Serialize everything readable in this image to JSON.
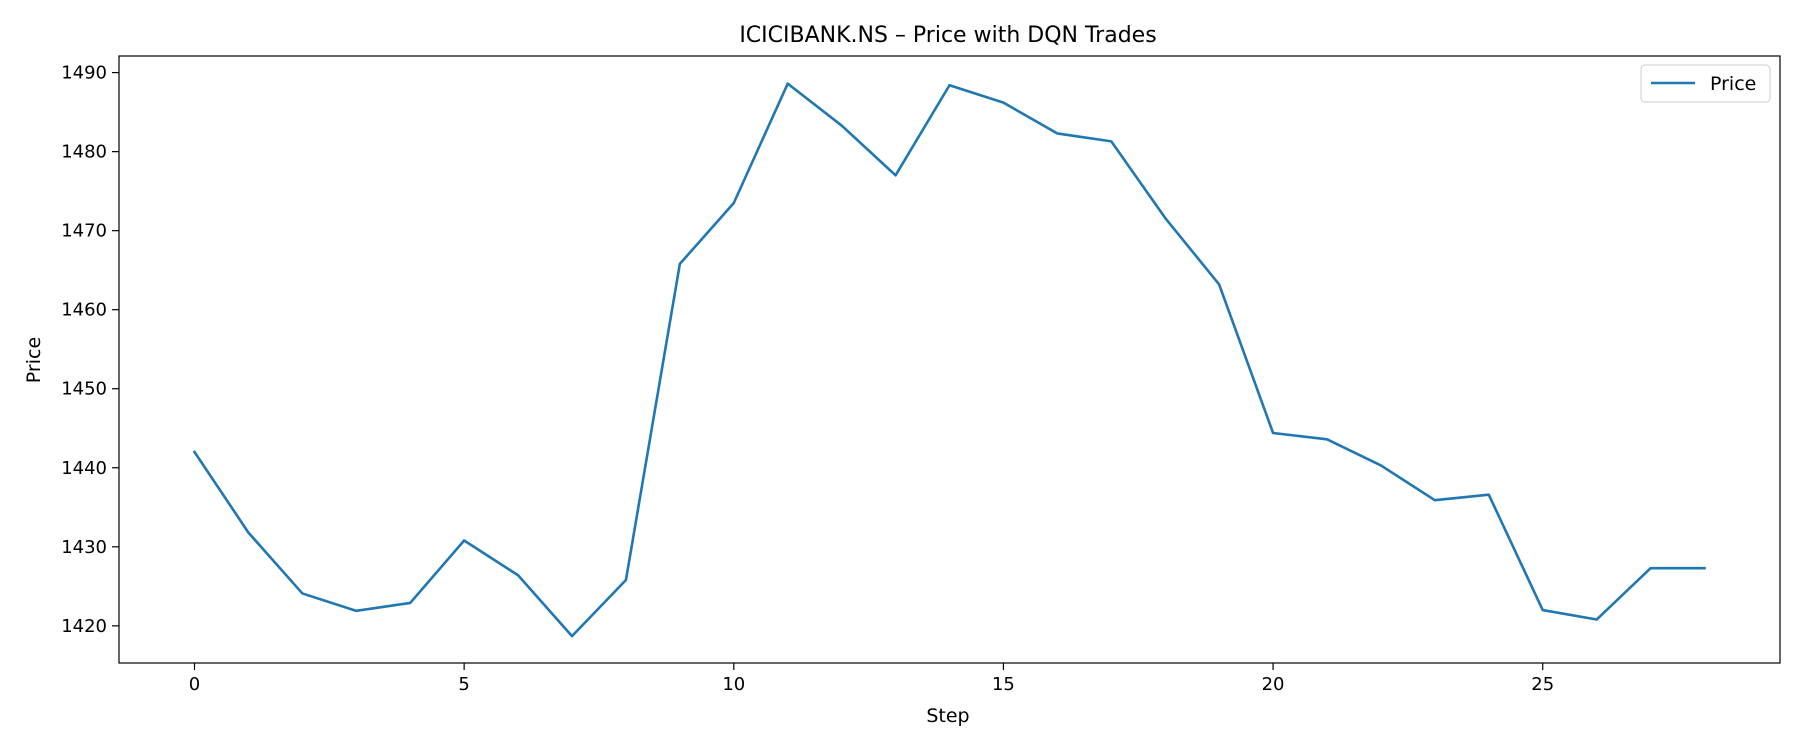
{
  "chart_data": {
    "type": "line",
    "title": "ICICIBANK.NS – Price with DQN Trades",
    "xlabel": "Step",
    "ylabel": "Price",
    "xlim": [
      -1.4,
      29.4
    ],
    "ylim": [
      1415.3,
      1492.1
    ],
    "xticks": [
      0,
      5,
      10,
      15,
      20,
      25
    ],
    "yticks": [
      1420,
      1430,
      1440,
      1450,
      1460,
      1470,
      1480,
      1490
    ],
    "grid": false,
    "legend": {
      "position": "top-right",
      "entries": [
        "Price"
      ]
    },
    "series": [
      {
        "name": "Price",
        "color": "#1f77b4",
        "x": [
          0,
          1,
          2,
          3,
          4,
          5,
          6,
          7,
          8,
          9,
          10,
          11,
          12,
          13,
          14,
          15,
          16,
          17,
          18,
          19,
          20,
          21,
          22,
          23,
          24,
          25,
          26,
          27,
          28
        ],
        "values": [
          1442.0,
          1431.8,
          1424.1,
          1421.9,
          1422.9,
          1430.8,
          1426.4,
          1418.7,
          1425.8,
          1465.8,
          1473.5,
          1488.6,
          1483.3,
          1477.0,
          1488.4,
          1486.2,
          1482.3,
          1481.3,
          1471.6,
          1463.2,
          1444.4,
          1443.6,
          1440.3,
          1435.9,
          1436.6,
          1422.0,
          1420.8,
          1427.3,
          1427.3
        ]
      }
    ]
  }
}
